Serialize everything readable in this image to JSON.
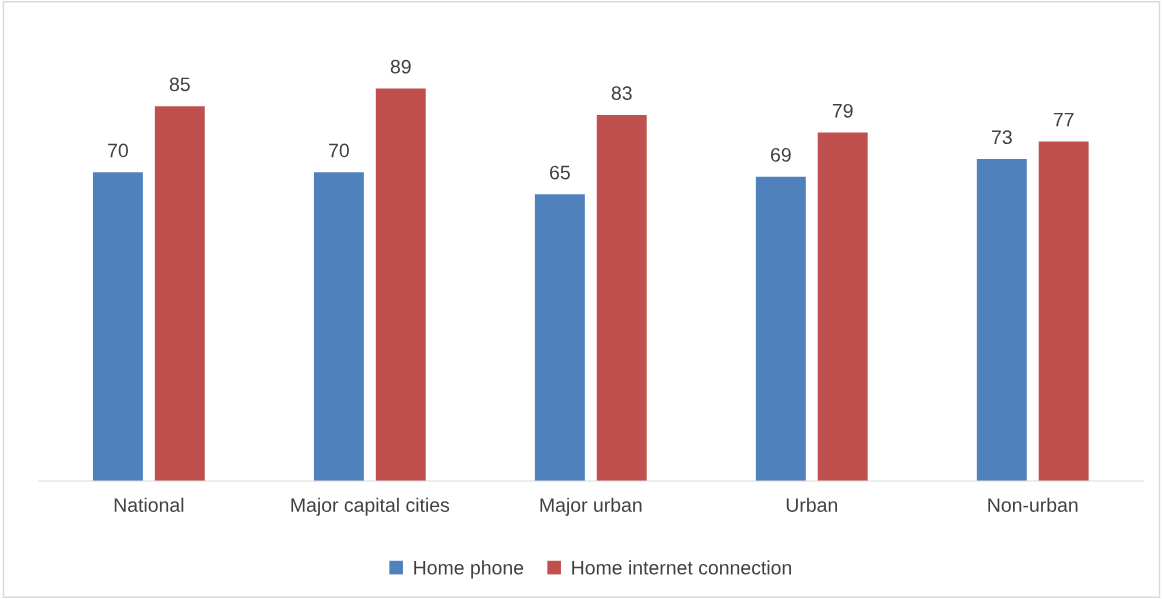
{
  "chart_data": {
    "type": "bar",
    "categories": [
      "National",
      "Major capital cities",
      "Major urban",
      "Urban",
      "Non-urban"
    ],
    "series": [
      {
        "name": "Home phone",
        "color": "#4f81bd",
        "values": [
          70,
          70,
          65,
          69,
          73
        ]
      },
      {
        "name": "Home internet connection",
        "color": "#c0504d",
        "values": [
          85,
          89,
          83,
          79,
          77
        ]
      }
    ],
    "data_labels": true,
    "grid": false,
    "legend": "bottom"
  }
}
